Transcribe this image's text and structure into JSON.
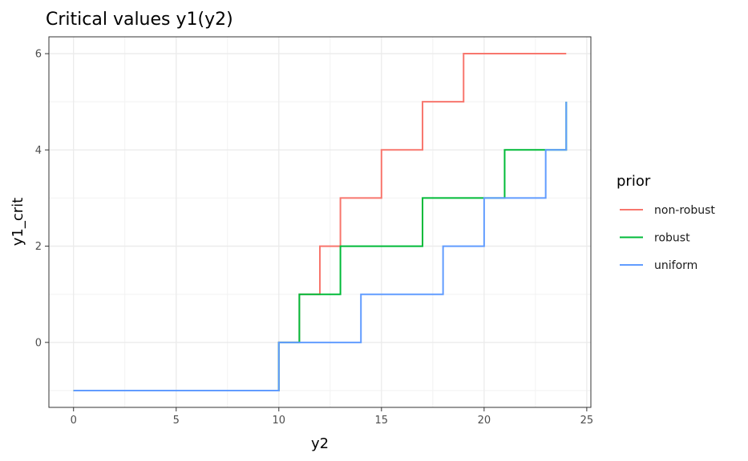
{
  "chart_data": {
    "type": "line",
    "title": "Critical values y1(y2)",
    "xlabel": "y2",
    "ylabel": "y1_crit",
    "xlim": [
      -1.2,
      25.2
    ],
    "ylim": [
      -1.35,
      6.35
    ],
    "x_ticks": [
      0,
      5,
      10,
      15,
      20,
      25
    ],
    "y_ticks": [
      0,
      2,
      4,
      6
    ],
    "x_tick_labels": [
      "0",
      "5",
      "10",
      "15",
      "20",
      "25"
    ],
    "y_tick_labels": [
      "0",
      "2",
      "4",
      "6"
    ],
    "grid": true,
    "step": "hv",
    "legend": {
      "title": "prior",
      "position": "right"
    },
    "series": [
      {
        "name": "non-robust",
        "color": "#F8766D",
        "x": [
          0,
          1,
          2,
          3,
          4,
          5,
          6,
          7,
          8,
          9,
          10,
          11,
          12,
          13,
          14,
          15,
          16,
          17,
          18,
          19,
          20,
          21,
          22,
          23,
          24
        ],
        "y": [
          -1,
          -1,
          -1,
          -1,
          -1,
          -1,
          -1,
          -1,
          -1,
          -1,
          0,
          1,
          2,
          3,
          3,
          4,
          4,
          5,
          5,
          6,
          6,
          6,
          6,
          6,
          6
        ]
      },
      {
        "name": "robust",
        "color": "#00BA38",
        "x": [
          0,
          1,
          2,
          3,
          4,
          5,
          6,
          7,
          8,
          9,
          10,
          11,
          12,
          13,
          14,
          15,
          16,
          17,
          18,
          19,
          20,
          21,
          22,
          23,
          24
        ],
        "y": [
          -1,
          -1,
          -1,
          -1,
          -1,
          -1,
          -1,
          -1,
          -1,
          -1,
          0,
          1,
          1,
          2,
          2,
          2,
          2,
          3,
          3,
          3,
          3,
          4,
          4,
          4,
          5
        ]
      },
      {
        "name": "uniform",
        "color": "#619CFF",
        "x": [
          0,
          1,
          2,
          3,
          4,
          5,
          6,
          7,
          8,
          9,
          10,
          11,
          12,
          13,
          14,
          15,
          16,
          17,
          18,
          19,
          20,
          21,
          22,
          23,
          24
        ],
        "y": [
          -1,
          -1,
          -1,
          -1,
          -1,
          -1,
          -1,
          -1,
          -1,
          -1,
          0,
          0,
          0,
          0,
          1,
          1,
          1,
          1,
          2,
          2,
          3,
          3,
          3,
          4,
          5
        ]
      }
    ]
  }
}
